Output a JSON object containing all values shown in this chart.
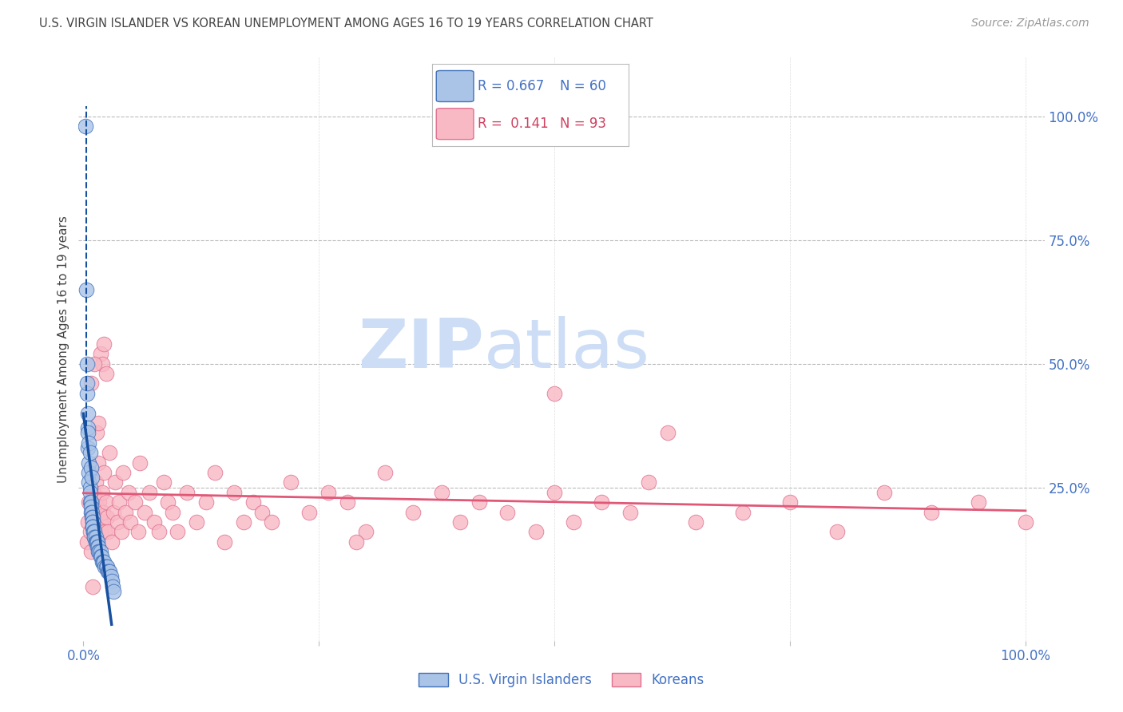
{
  "title": "U.S. VIRGIN ISLANDER VS KOREAN UNEMPLOYMENT AMONG AGES 16 TO 19 YEARS CORRELATION CHART",
  "source": "Source: ZipAtlas.com",
  "ylabel": "Unemployment Among Ages 16 to 19 years",
  "xlim": [
    -0.005,
    1.02
  ],
  "ylim": [
    -0.06,
    1.12
  ],
  "blue_face": "#aac4e8",
  "blue_edge": "#4070b8",
  "blue_line": "#1850a0",
  "pink_face": "#f8b8c4",
  "pink_edge": "#e07090",
  "pink_line": "#e05878",
  "legend_blue": "#4472c4",
  "legend_pink": "#d04060",
  "right_axis_color": "#4472c4",
  "watermark_color": "#ccddf5",
  "grid_color": "#bbbbbb",
  "title_color": "#444444",
  "bg_color": "#ffffff",
  "ytick_vals": [
    0.25,
    0.5,
    0.75,
    1.0
  ],
  "ytick_labels": [
    "25.0%",
    "50.0%",
    "75.0%",
    "100.0%"
  ],
  "vi_x": [
    0.002,
    0.003,
    0.004,
    0.004,
    0.005,
    0.005,
    0.005,
    0.006,
    0.006,
    0.006,
    0.007,
    0.007,
    0.007,
    0.008,
    0.008,
    0.008,
    0.009,
    0.009,
    0.01,
    0.01,
    0.01,
    0.01,
    0.01,
    0.01,
    0.011,
    0.011,
    0.012,
    0.012,
    0.012,
    0.013,
    0.013,
    0.014,
    0.014,
    0.015,
    0.015,
    0.016,
    0.016,
    0.017,
    0.018,
    0.018,
    0.019,
    0.02,
    0.021,
    0.022,
    0.023,
    0.024,
    0.025,
    0.026,
    0.027,
    0.028,
    0.029,
    0.03,
    0.031,
    0.032,
    0.004,
    0.005,
    0.006,
    0.007,
    0.008,
    0.009
  ],
  "vi_y": [
    0.98,
    0.65,
    0.5,
    0.44,
    0.4,
    0.37,
    0.33,
    0.3,
    0.28,
    0.26,
    0.25,
    0.24,
    0.22,
    0.22,
    0.21,
    0.2,
    0.2,
    0.19,
    0.19,
    0.18,
    0.18,
    0.17,
    0.17,
    0.17,
    0.16,
    0.16,
    0.16,
    0.15,
    0.15,
    0.15,
    0.14,
    0.14,
    0.14,
    0.14,
    0.13,
    0.13,
    0.12,
    0.12,
    0.12,
    0.11,
    0.11,
    0.1,
    0.1,
    0.1,
    0.09,
    0.09,
    0.09,
    0.08,
    0.08,
    0.08,
    0.07,
    0.06,
    0.05,
    0.04,
    0.46,
    0.36,
    0.34,
    0.32,
    0.29,
    0.27
  ],
  "korean_x": [
    0.004,
    0.005,
    0.006,
    0.007,
    0.008,
    0.009,
    0.01,
    0.011,
    0.012,
    0.013,
    0.014,
    0.015,
    0.016,
    0.017,
    0.018,
    0.019,
    0.02,
    0.021,
    0.022,
    0.023,
    0.024,
    0.025,
    0.026,
    0.028,
    0.03,
    0.032,
    0.034,
    0.036,
    0.038,
    0.04,
    0.042,
    0.045,
    0.048,
    0.05,
    0.055,
    0.058,
    0.06,
    0.065,
    0.07,
    0.075,
    0.08,
    0.085,
    0.09,
    0.095,
    0.1,
    0.11,
    0.12,
    0.13,
    0.14,
    0.15,
    0.16,
    0.17,
    0.18,
    0.19,
    0.2,
    0.22,
    0.24,
    0.26,
    0.28,
    0.3,
    0.32,
    0.35,
    0.38,
    0.4,
    0.42,
    0.45,
    0.48,
    0.5,
    0.52,
    0.55,
    0.58,
    0.6,
    0.65,
    0.7,
    0.75,
    0.8,
    0.85,
    0.9,
    0.95,
    1.0,
    0.014,
    0.016,
    0.018,
    0.02,
    0.022,
    0.024,
    0.01,
    0.012,
    0.008,
    0.5,
    0.62,
    0.29
  ],
  "korean_y": [
    0.14,
    0.18,
    0.22,
    0.16,
    0.12,
    0.2,
    0.17,
    0.24,
    0.19,
    0.26,
    0.21,
    0.15,
    0.3,
    0.22,
    0.18,
    0.16,
    0.24,
    0.2,
    0.28,
    0.16,
    0.22,
    0.19,
    0.16,
    0.32,
    0.14,
    0.2,
    0.26,
    0.18,
    0.22,
    0.16,
    0.28,
    0.2,
    0.24,
    0.18,
    0.22,
    0.16,
    0.3,
    0.2,
    0.24,
    0.18,
    0.16,
    0.26,
    0.22,
    0.2,
    0.16,
    0.24,
    0.18,
    0.22,
    0.28,
    0.14,
    0.24,
    0.18,
    0.22,
    0.2,
    0.18,
    0.26,
    0.2,
    0.24,
    0.22,
    0.16,
    0.28,
    0.2,
    0.24,
    0.18,
    0.22,
    0.2,
    0.16,
    0.24,
    0.18,
    0.22,
    0.2,
    0.26,
    0.18,
    0.2,
    0.22,
    0.16,
    0.24,
    0.2,
    0.22,
    0.18,
    0.36,
    0.38,
    0.52,
    0.5,
    0.54,
    0.48,
    0.05,
    0.5,
    0.46,
    0.44,
    0.36,
    0.14
  ]
}
